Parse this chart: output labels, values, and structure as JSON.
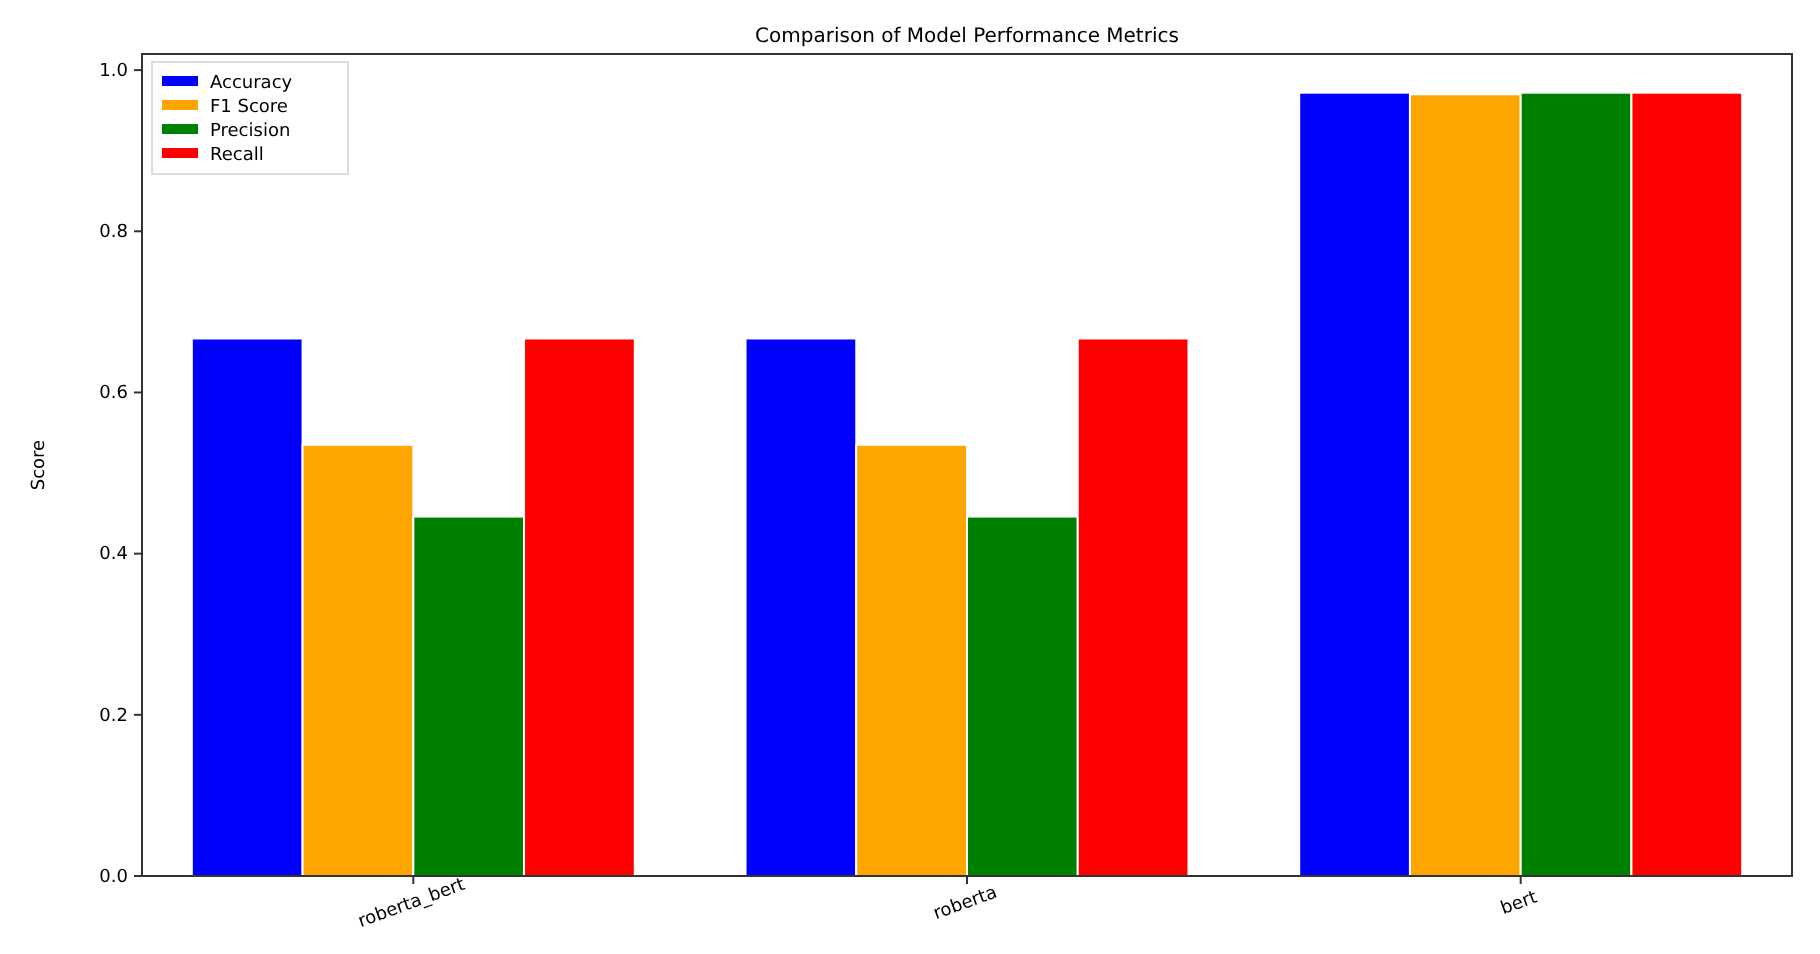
{
  "chart_data": {
    "type": "bar",
    "title": "Comparison of Model Performance Metrics",
    "ylabel": "Score",
    "categories": [
      "roberta_bert",
      "roberta",
      "bert"
    ],
    "series": [
      {
        "name": "Accuracy",
        "color": "#0000ff",
        "values": [
          0.667,
          0.667,
          0.972
        ]
      },
      {
        "name": "F1 Score",
        "color": "#ffa500",
        "values": [
          0.535,
          0.535,
          0.97
        ]
      },
      {
        "name": "Precision",
        "color": "#008000",
        "values": [
          0.446,
          0.446,
          0.972
        ]
      },
      {
        "name": "Recall",
        "color": "#ff0000",
        "values": [
          0.667,
          0.667,
          0.972
        ]
      }
    ],
    "ylim": [
      0,
      1.02
    ],
    "yticks": [
      {
        "value": 0,
        "label": "0.0"
      },
      0.2,
      0.4,
      0.6,
      0.8,
      {
        "value": 1,
        "label": "1.0"
      }
    ],
    "legend": "top left",
    "grid": false
  }
}
